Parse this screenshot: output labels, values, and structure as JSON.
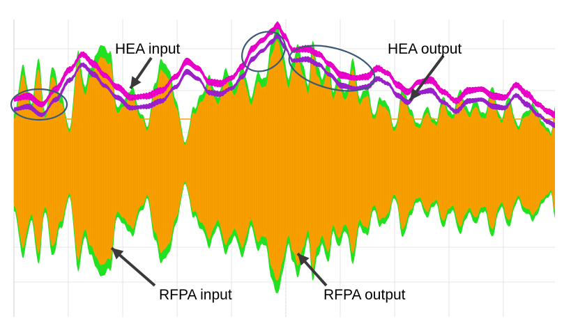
{
  "chart_data": {
    "type": "line",
    "title": "",
    "xlabel": "",
    "ylabel": "",
    "grid": true,
    "series": [
      {
        "name": "HEA input",
        "color": "#e800c8",
        "kind": "envelope"
      },
      {
        "name": "HEA output",
        "color": "#9a1fc8",
        "kind": "envelope"
      },
      {
        "name": "RFPA input",
        "color": "#22e022",
        "kind": "rf-waveform"
      },
      {
        "name": "RFPA output",
        "color": "#f7a000",
        "kind": "rf-waveform"
      }
    ],
    "annotations": [
      {
        "text": "HEA input",
        "points_to": "HEA input"
      },
      {
        "text": "HEA output",
        "points_to": "HEA output"
      },
      {
        "text": "RFPA input",
        "points_to": "RFPA input"
      },
      {
        "text": "RFPA output",
        "points_to": "RFPA output"
      }
    ],
    "highlights": [
      "left-start",
      "center-peak",
      "after-peak"
    ],
    "reference_line_color": "#f7a000"
  }
}
